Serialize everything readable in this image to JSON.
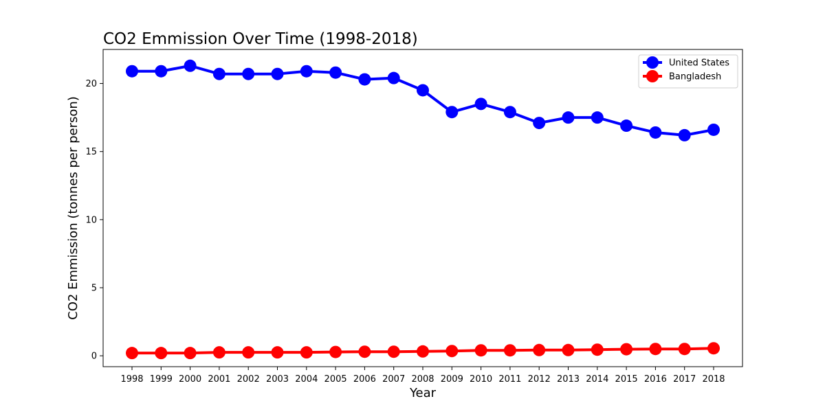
{
  "chart_data": {
    "type": "line",
    "title": "CO2 Emmission Over Time (1998-2018)",
    "xlabel": "Year",
    "ylabel": "CO2 Emmission (tonnes per person)",
    "x": [
      "1998",
      "1999",
      "2000",
      "2001",
      "2002",
      "2003",
      "2004",
      "2005",
      "2006",
      "2007",
      "2008",
      "2009",
      "2010",
      "2011",
      "2012",
      "2013",
      "2014",
      "2015",
      "2016",
      "2017",
      "2018"
    ],
    "yticks": [
      "0",
      "5",
      "10",
      "15",
      "20"
    ],
    "ylim": [
      -0.8,
      22.5
    ],
    "legend_position": "upper-right",
    "grid": false,
    "series": [
      {
        "name": "United States",
        "color": "#0000ff",
        "marker": "circle",
        "values": [
          20.9,
          20.9,
          21.3,
          20.7,
          20.7,
          20.7,
          20.9,
          20.8,
          20.3,
          20.4,
          19.5,
          17.9,
          18.5,
          17.9,
          17.1,
          17.5,
          17.5,
          16.9,
          16.4,
          16.2,
          16.6
        ]
      },
      {
        "name": "Bangladesh",
        "color": "#ff0000",
        "marker": "circle",
        "values": [
          0.2,
          0.2,
          0.2,
          0.25,
          0.25,
          0.25,
          0.25,
          0.28,
          0.3,
          0.3,
          0.32,
          0.35,
          0.4,
          0.4,
          0.42,
          0.42,
          0.45,
          0.48,
          0.5,
          0.5,
          0.55
        ]
      }
    ]
  }
}
